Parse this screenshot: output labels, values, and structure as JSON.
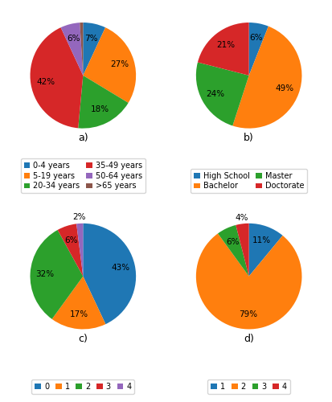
{
  "chart_data": [
    {
      "type": "pie",
      "title": "a)",
      "categories": [
        "0-4 years",
        "5-19 years",
        "20-34 years",
        "35-49 years",
        "50-64 years",
        ">65 years"
      ],
      "values": [
        7,
        27,
        18,
        42,
        6,
        1
      ],
      "value_labels": [
        "7%",
        "27%",
        "18%",
        "42%",
        "6%",
        null
      ],
      "legend": "lower center"
    },
    {
      "type": "pie",
      "title": "b)",
      "categories": [
        "High School",
        "Bachelor",
        "Master",
        "Doctorate"
      ],
      "values": [
        6,
        49,
        24,
        21
      ],
      "value_labels": [
        "6%",
        "49%",
        "24%",
        "21%"
      ],
      "legend": "lower center"
    },
    {
      "type": "pie",
      "title": "c)",
      "categories": [
        "0",
        "1",
        "2",
        "3",
        "4"
      ],
      "values": [
        43,
        17,
        32,
        6,
        2
      ],
      "value_labels": [
        "43%",
        "17%",
        "32%",
        "6%",
        "2%"
      ],
      "legend": "lower center"
    },
    {
      "type": "pie",
      "title": "d)",
      "categories": [
        "1",
        "2",
        "3",
        "4"
      ],
      "values": [
        11,
        79,
        6,
        4
      ],
      "value_labels": [
        "11%",
        "79%",
        "6%",
        "4%"
      ],
      "legend": "lower center"
    }
  ]
}
